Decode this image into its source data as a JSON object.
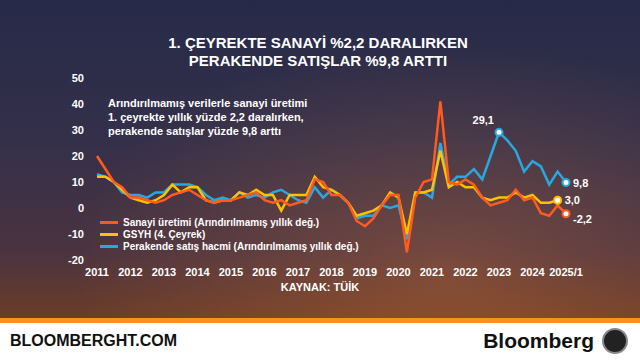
{
  "chart_data": {
    "type": "line",
    "title": [
      "1. ÇEYREKTE SANAYİ %2,2 DARALIRKEN",
      "PERAKENDE SATIŞLAR %9,8 ARTTI"
    ],
    "subtitle": [
      "Arındırılmamış verilerle sanayi üretimi",
      "1. çeyrekte yıllık yüzde 2,2 daralırken,",
      "perakende satışlar yüzde 9,8 arttı"
    ],
    "source": "KAYNAK: TÜİK",
    "footer": {
      "site": "BLOOMBERGHT.COM",
      "brand": "Bloomberg"
    },
    "categories": [
      "2011",
      null,
      null,
      null,
      "2012",
      null,
      null,
      null,
      "2013",
      null,
      null,
      null,
      "2014",
      null,
      null,
      null,
      "2015",
      null,
      null,
      null,
      "2016",
      null,
      null,
      null,
      "2017",
      null,
      null,
      null,
      "2018",
      null,
      null,
      null,
      "2019",
      null,
      null,
      null,
      "2020",
      null,
      null,
      null,
      "2021",
      null,
      null,
      null,
      "2022",
      null,
      null,
      null,
      "2023",
      null,
      null,
      null,
      "2024",
      null,
      null,
      null,
      "2025/1"
    ],
    "series": [
      {
        "name": "Sanayi üretimi (Arındırılmamış yıllık değ.)",
        "color": "#ff5a1f",
        "values": [
          20,
          15,
          10,
          8,
          4,
          4,
          3,
          2,
          3,
          5,
          6,
          7,
          5,
          3,
          2,
          3,
          3,
          4,
          5,
          6,
          3,
          2,
          3,
          1,
          2,
          3,
          11,
          10,
          5,
          5,
          2,
          -5,
          -7,
          -4,
          1,
          5,
          5,
          -17,
          4,
          10,
          11,
          41,
          10,
          9,
          11,
          9,
          4,
          1,
          2,
          3,
          7,
          3,
          4,
          -2,
          -3,
          1,
          -2.2
        ],
        "value_labels": [
          null,
          null,
          null,
          null,
          null,
          null,
          null,
          null,
          null,
          null,
          null,
          null,
          null,
          null,
          null,
          null,
          null,
          null,
          null,
          null,
          null,
          null,
          null,
          null,
          null,
          null,
          null,
          null,
          null,
          null,
          null,
          null,
          null,
          null,
          null,
          null,
          null,
          null,
          null,
          null,
          null,
          null,
          null,
          null,
          null,
          null,
          null,
          null,
          null,
          null,
          null,
          null,
          null,
          null,
          null,
          null,
          "-2,2"
        ]
      },
      {
        "name": "GSYH (4. Çeyrek)",
        "color": "#ffc000",
        "values": [
          12,
          12,
          10,
          7,
          4,
          3,
          2,
          3,
          5,
          9,
          6,
          8,
          8,
          3,
          2,
          3,
          3,
          6,
          5,
          7,
          5,
          5,
          -1,
          5,
          5,
          5,
          12,
          8,
          7,
          5,
          2,
          -3,
          -2,
          -1,
          1,
          6,
          4,
          -10,
          6,
          6,
          7,
          22,
          8,
          10,
          8,
          8,
          4,
          3,
          4,
          4,
          6,
          4,
          5,
          2,
          2,
          3.0,
          null
        ],
        "value_labels": [
          null,
          null,
          null,
          null,
          null,
          null,
          null,
          null,
          null,
          null,
          null,
          null,
          null,
          null,
          null,
          null,
          null,
          null,
          null,
          null,
          null,
          null,
          null,
          null,
          null,
          null,
          null,
          null,
          null,
          null,
          null,
          null,
          null,
          null,
          null,
          null,
          null,
          null,
          null,
          null,
          null,
          null,
          null,
          null,
          null,
          null,
          null,
          null,
          null,
          null,
          null,
          null,
          null,
          null,
          null,
          "3,0",
          null
        ]
      },
      {
        "name": "Perakende satış hacmi (Arındırılmamış yıllık değ.)",
        "color": "#29a8e0",
        "values": [
          13,
          12,
          10,
          6,
          5,
          5,
          4,
          6,
          6,
          9,
          9,
          9,
          8,
          5,
          3,
          4,
          3,
          6,
          4,
          5,
          4,
          6,
          7,
          5,
          3,
          2,
          8,
          4,
          7,
          5,
          2,
          -4,
          -3,
          -3,
          1,
          0,
          1,
          -12,
          6,
          6,
          4,
          25,
          9,
          12,
          12,
          15,
          11,
          20,
          29.1,
          26,
          22,
          14,
          18,
          16,
          9,
          14,
          9.8
        ],
        "value_labels": [
          null,
          null,
          null,
          null,
          null,
          null,
          null,
          null,
          null,
          null,
          null,
          null,
          null,
          null,
          null,
          null,
          null,
          null,
          null,
          null,
          null,
          null,
          null,
          null,
          null,
          null,
          null,
          null,
          null,
          null,
          null,
          null,
          null,
          null,
          null,
          null,
          null,
          null,
          null,
          null,
          null,
          null,
          null,
          null,
          null,
          null,
          null,
          null,
          "29,1",
          null,
          null,
          null,
          null,
          null,
          null,
          null,
          "9,8"
        ]
      }
    ],
    "ylim": [
      -20,
      50
    ],
    "yticks": [
      -20,
      -10,
      0,
      10,
      20,
      30,
      40,
      50
    ],
    "grid": false,
    "legend": "lower left"
  }
}
